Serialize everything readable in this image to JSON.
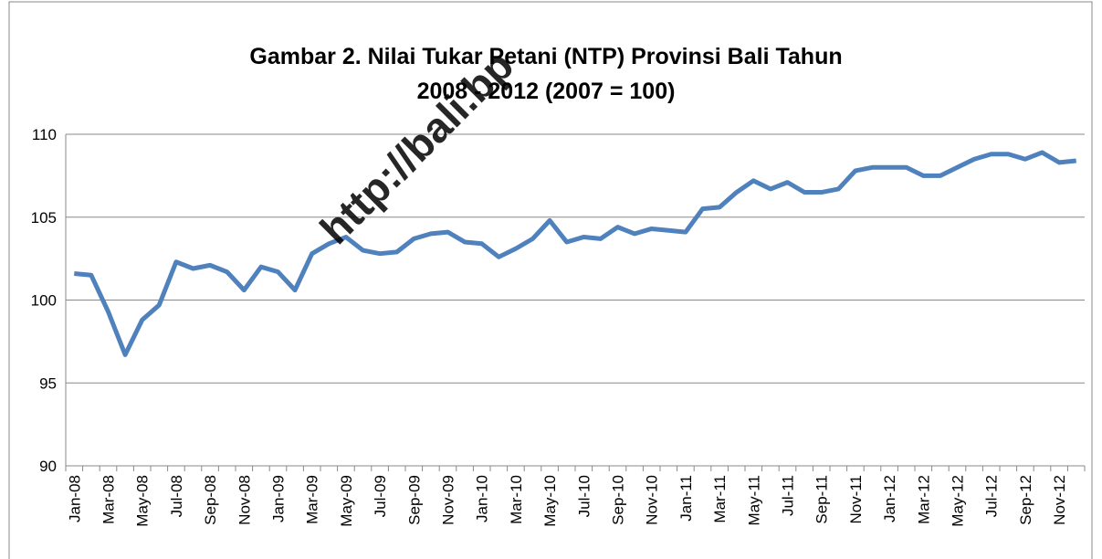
{
  "chart_data": {
    "type": "line",
    "title": [
      "Gambar 2. Nilai Tukar Petani (NTP) Provinsi Bali Tahun",
      "2008 - 2012 (2007 = 100)"
    ],
    "watermark": "http://bali.bp",
    "categories": [
      "Jan-08",
      null,
      "Mar-08",
      null,
      "May-08",
      null,
      "Jul-08",
      null,
      "Sep-08",
      null,
      "Nov-08",
      null,
      "Jan-09",
      null,
      "Mar-09",
      null,
      "May-09",
      null,
      "Jul-09",
      null,
      "Sep-09",
      null,
      "Nov-09",
      null,
      "Jan-10",
      null,
      "Mar-10",
      null,
      "May-10",
      null,
      "Jul-10",
      null,
      "Sep-10",
      null,
      "Nov-10",
      null,
      "Jan-11",
      null,
      "Mar-11",
      null,
      "May-11",
      null,
      "Jul-11",
      null,
      "Sep-11",
      null,
      "Nov-11",
      null,
      "Jan-12",
      null,
      "Mar-12",
      null,
      "May-12",
      null,
      "Jul-12",
      null,
      "Sep-12",
      null,
      "Nov-12",
      null
    ],
    "series": [
      {
        "color": "#4f81bd",
        "values": [
          101.6,
          101.5,
          99.3,
          96.7,
          98.8,
          99.7,
          102.3,
          101.9,
          102.1,
          101.7,
          100.6,
          102.0,
          101.7,
          100.6,
          102.8,
          103.4,
          103.8,
          103.0,
          102.8,
          102.9,
          103.7,
          104.0,
          104.1,
          103.5,
          103.4,
          102.6,
          103.1,
          103.7,
          104.8,
          103.5,
          103.8,
          103.7,
          104.4,
          104.0,
          104.3,
          104.2,
          104.1,
          105.5,
          105.6,
          106.5,
          107.2,
          106.7,
          107.1,
          106.5,
          106.5,
          106.7,
          107.8,
          108.0,
          108.0,
          108.0,
          107.5,
          107.5,
          108.0,
          108.5,
          108.8,
          108.8,
          108.5,
          108.9,
          108.3,
          108.4
        ]
      }
    ],
    "ylim": [
      90,
      110
    ],
    "yticks": [
      90,
      95,
      100,
      105,
      110
    ],
    "grid": true
  }
}
